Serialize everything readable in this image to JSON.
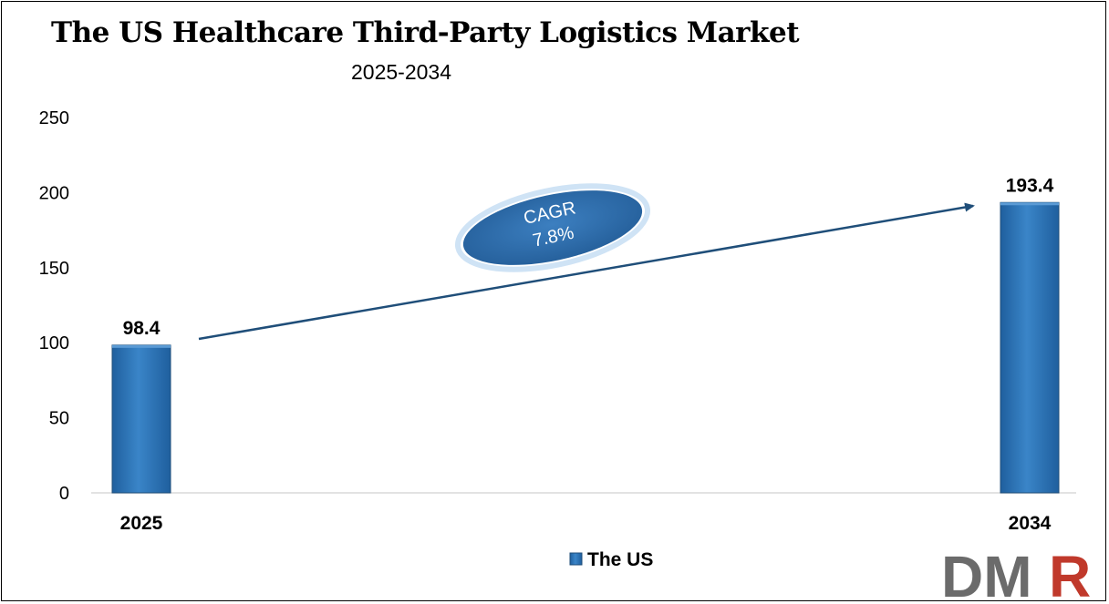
{
  "chart_data": {
    "type": "bar",
    "title": "The US Healthcare Third-Party Logistics Market",
    "subtitle": "2025-2034",
    "categories": [
      "2025",
      "2034"
    ],
    "series": [
      {
        "name": "The US",
        "values": [
          98.4,
          193.4
        ],
        "data_labels": [
          "98.4",
          "193.4"
        ]
      }
    ],
    "ylim": [
      0,
      250
    ],
    "yticks": [
      "0",
      "50",
      "100",
      "150",
      "200",
      "250"
    ],
    "xlabel": "",
    "ylabel": "",
    "grid": false,
    "legend": "bottom-center",
    "annotation": {
      "line1": "CAGR",
      "line2": "7.8%"
    },
    "colors": {
      "bar": "#2e75b6",
      "bar_dark": "#1f4e79",
      "arrow": "#1f4e79",
      "ellipse": "#2e6da4"
    }
  },
  "logo": {
    "text_dm": "DM",
    "text_r": "R",
    "colors": {
      "dm": "#6b6b6b",
      "r": "#c0392b"
    }
  }
}
